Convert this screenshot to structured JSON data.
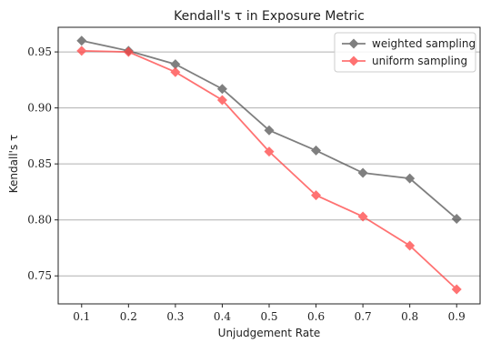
{
  "chart_data": {
    "type": "line",
    "title": "Kendall's τ in Exposure Metric",
    "xlabel": "Unjudgement Rate",
    "ylabel": "Kendall's τ",
    "x": [
      0.1,
      0.2,
      0.3,
      0.4,
      0.5,
      0.6,
      0.7,
      0.8,
      0.9
    ],
    "x_tick_labels": [
      "0.1",
      "0.2",
      "0.3",
      "0.4",
      "0.5",
      "0.6",
      "0.7",
      "0.8",
      "0.9"
    ],
    "xlim": [
      0.05,
      0.95
    ],
    "ylim": [
      0.725,
      0.972
    ],
    "y_ticks": [
      0.75,
      0.8,
      0.85,
      0.9,
      0.95
    ],
    "y_tick_labels": [
      "0.75",
      "0.80",
      "0.85",
      "0.90",
      "0.95"
    ],
    "grid": "horizontal",
    "legend_position": "top-right",
    "series": [
      {
        "name": "weighted sampling",
        "color": "#555555",
        "marker": "diamond",
        "values": [
          0.96,
          0.951,
          0.939,
          0.917,
          0.88,
          0.862,
          0.842,
          0.837,
          0.801
        ]
      },
      {
        "name": "uniform sampling",
        "color": "#ff4444",
        "marker": "diamond",
        "values": [
          0.951,
          0.95,
          0.932,
          0.907,
          0.861,
          0.822,
          0.803,
          0.777,
          0.738
        ]
      }
    ]
  }
}
